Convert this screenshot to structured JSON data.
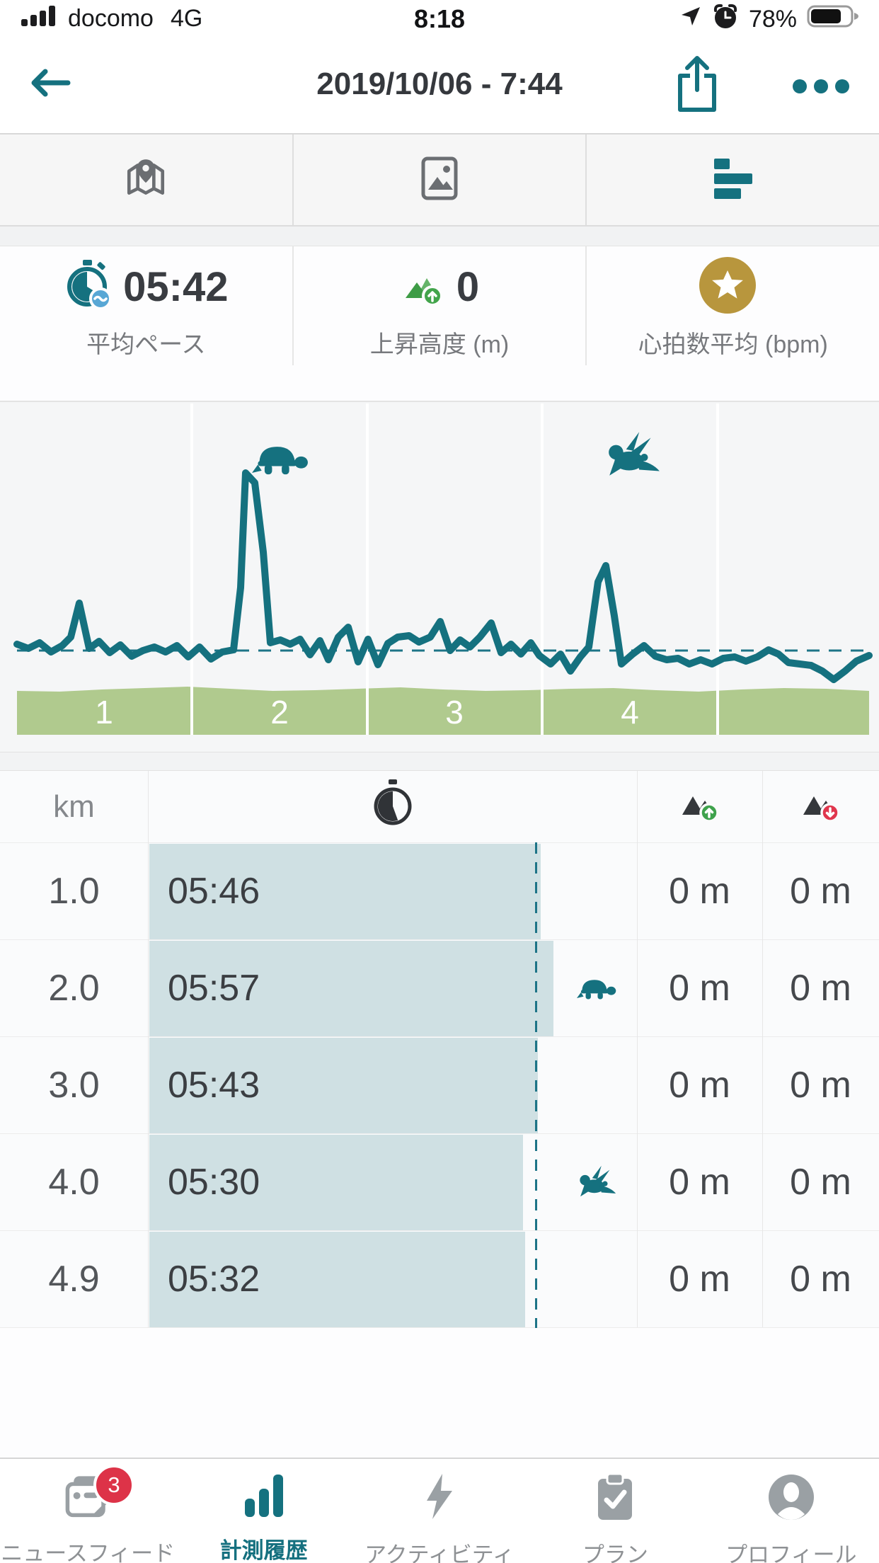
{
  "status_bar": {
    "carrier": "docomo",
    "network": "4G",
    "time": "8:18",
    "battery_percent": "78%"
  },
  "header": {
    "title": "2019/10/06 - 7:44"
  },
  "media_tabs": [
    {
      "id": "map"
    },
    {
      "id": "photos"
    },
    {
      "id": "splits",
      "active": true
    }
  ],
  "stats": [
    {
      "value": "05:42",
      "label": "平均ペース",
      "icon": "pace-stopwatch-icon"
    },
    {
      "value": "0",
      "label": "上昇高度 (m)",
      "icon": "elevation-mountain-icon"
    },
    {
      "value": "",
      "label": "心拍数平均 (bpm)",
      "icon": "heart-rate-star-icon"
    }
  ],
  "chart_data": {
    "type": "line",
    "title": "pace per km (lower = faster)",
    "x_unit": "km",
    "total_distance_km": 4.9,
    "grid": "vertical km gridlines, no axis labels",
    "legend_position": "none",
    "average_pace": "05:42",
    "average_line": {
      "style": "dashed",
      "y": 349
    },
    "series": [
      {
        "name": "pace_per_km",
        "x": [
          1.0,
          2.0,
          3.0,
          4.0,
          4.9
        ],
        "values": [
          "05:46",
          "05:57",
          "05:43",
          "05:30",
          "05:32"
        ]
      }
    ],
    "slowest_km_marker": {
      "km": 2,
      "icon": "turtle"
    },
    "fastest_km_marker": {
      "km": 4,
      "icon": "rabbit"
    },
    "km_markers": [
      "1",
      "2",
      "3",
      "4",
      ""
    ],
    "elevation_band": {
      "color": "#b0ca8e",
      "values_m": [
        0,
        0,
        0,
        0,
        0
      ],
      "tops": [
        406,
        407,
        404,
        402,
        400,
        403,
        406,
        405,
        403,
        401,
        404,
        406,
        405,
        403,
        402,
        405,
        407,
        404,
        402,
        403,
        406
      ]
    },
    "line_points": [
      [
        24,
        340
      ],
      [
        40,
        346
      ],
      [
        56,
        338
      ],
      [
        72,
        351
      ],
      [
        88,
        342
      ],
      [
        100,
        330
      ],
      [
        112,
        282
      ],
      [
        126,
        346
      ],
      [
        140,
        336
      ],
      [
        155,
        352
      ],
      [
        170,
        341
      ],
      [
        186,
        357
      ],
      [
        202,
        349
      ],
      [
        218,
        344
      ],
      [
        234,
        351
      ],
      [
        250,
        342
      ],
      [
        266,
        358
      ],
      [
        282,
        344
      ],
      [
        298,
        361
      ],
      [
        314,
        351
      ],
      [
        330,
        348
      ],
      [
        340,
        260
      ],
      [
        347,
        98
      ],
      [
        360,
        112
      ],
      [
        372,
        210
      ],
      [
        382,
        338
      ],
      [
        396,
        334
      ],
      [
        410,
        340
      ],
      [
        424,
        333
      ],
      [
        438,
        355
      ],
      [
        452,
        335
      ],
      [
        464,
        362
      ],
      [
        478,
        330
      ],
      [
        492,
        316
      ],
      [
        506,
        365
      ],
      [
        520,
        333
      ],
      [
        534,
        369
      ],
      [
        548,
        339
      ],
      [
        562,
        330
      ],
      [
        578,
        328
      ],
      [
        592,
        337
      ],
      [
        608,
        330
      ],
      [
        622,
        308
      ],
      [
        636,
        349
      ],
      [
        650,
        334
      ],
      [
        664,
        344
      ],
      [
        678,
        330
      ],
      [
        694,
        310
      ],
      [
        708,
        352
      ],
      [
        722,
        340
      ],
      [
        736,
        354
      ],
      [
        750,
        338
      ],
      [
        762,
        356
      ],
      [
        778,
        368
      ],
      [
        792,
        354
      ],
      [
        806,
        378
      ],
      [
        820,
        358
      ],
      [
        832,
        344
      ],
      [
        845,
        252
      ],
      [
        856,
        229
      ],
      [
        868,
        300
      ],
      [
        878,
        368
      ],
      [
        894,
        354
      ],
      [
        910,
        342
      ],
      [
        926,
        357
      ],
      [
        942,
        362
      ],
      [
        958,
        360
      ],
      [
        974,
        368
      ],
      [
        990,
        362
      ],
      [
        1006,
        368
      ],
      [
        1022,
        360
      ],
      [
        1038,
        358
      ],
      [
        1054,
        364
      ],
      [
        1070,
        358
      ],
      [
        1086,
        348
      ],
      [
        1100,
        354
      ],
      [
        1114,
        366
      ],
      [
        1130,
        368
      ],
      [
        1146,
        370
      ],
      [
        1162,
        378
      ],
      [
        1178,
        390
      ],
      [
        1194,
        378
      ],
      [
        1210,
        364
      ],
      [
        1228,
        356
      ]
    ]
  },
  "splits_table": {
    "km_header": "km",
    "columns": [
      "km",
      "pace",
      "ascent",
      "descent"
    ],
    "rows": [
      {
        "km": "1.0",
        "pace": "05:46",
        "ascent": "0 m",
        "descent": "0 m",
        "marker": null
      },
      {
        "km": "2.0",
        "pace": "05:57",
        "ascent": "0 m",
        "descent": "0 m",
        "marker": "turtle"
      },
      {
        "km": "3.0",
        "pace": "05:43",
        "ascent": "0 m",
        "descent": "0 m",
        "marker": null
      },
      {
        "km": "4.0",
        "pace": "05:30",
        "ascent": "0 m",
        "descent": "0 m",
        "marker": "rabbit"
      },
      {
        "km": "4.9",
        "pace": "05:32",
        "ascent": "0 m",
        "descent": "0 m",
        "marker": null
      }
    ]
  },
  "bottom_nav": [
    {
      "label": "ニュースフィード",
      "badge": "3"
    },
    {
      "label": "計測履歴",
      "active": true
    },
    {
      "label": "アクティビティ"
    },
    {
      "label": "プラン"
    },
    {
      "label": "プロフィール"
    }
  ],
  "colors": {
    "accent_teal": "#15717f",
    "bar_fill": "#cfe0e3",
    "elevation_green": "#b0ca8e",
    "star_gold": "#b8963d",
    "badge_red": "#dd3348",
    "up_green": "#3ea24c",
    "down_red": "#e0364d"
  }
}
